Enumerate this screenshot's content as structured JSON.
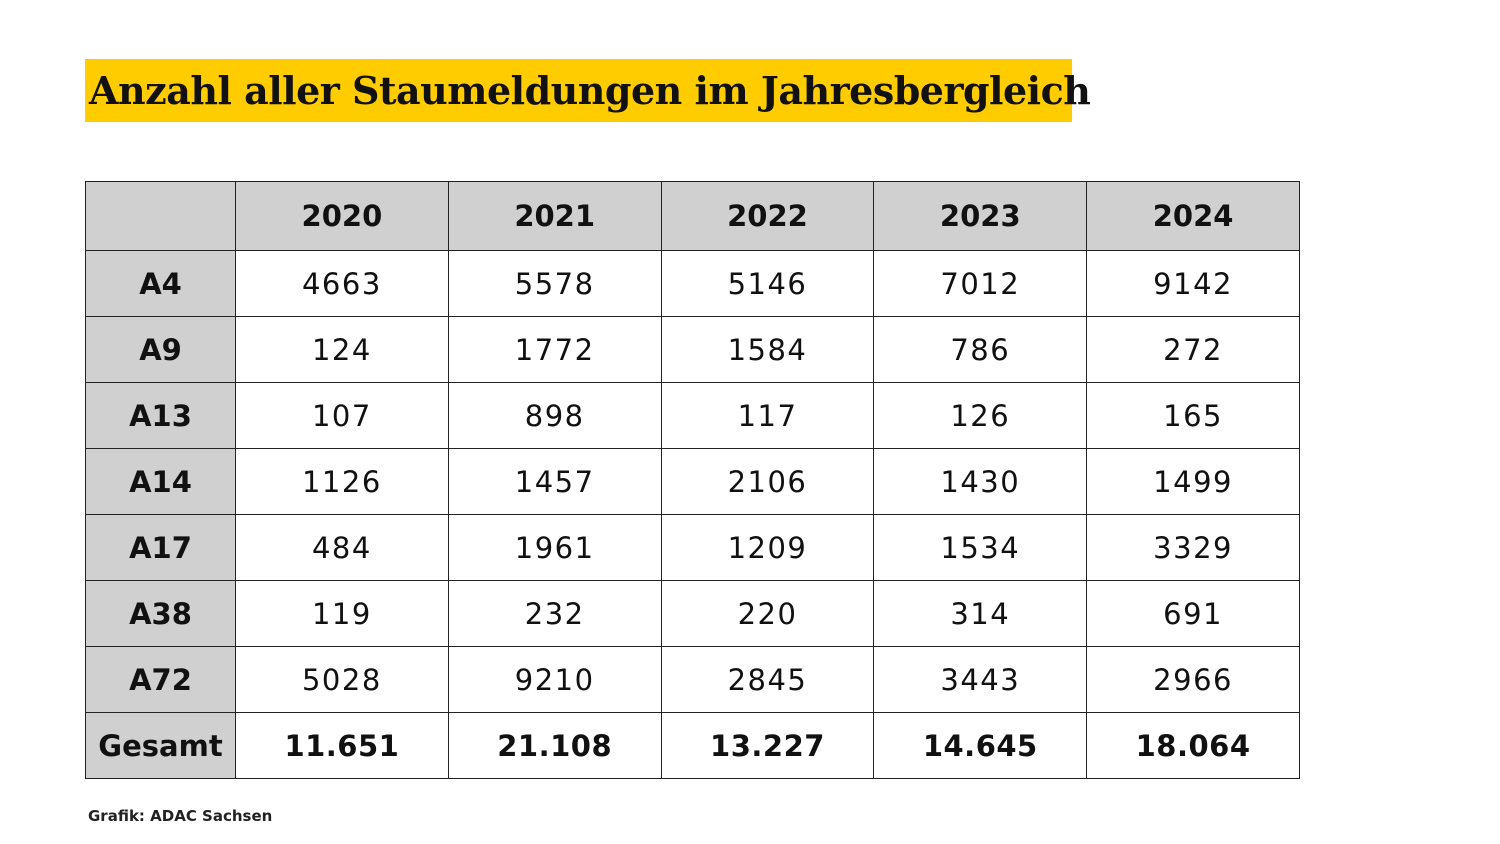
{
  "title": "Anzahl aller Staumeldungen im Jahresbergleich",
  "source": "Grafik: ADAC Sachsen",
  "colors": {
    "title_background": "#ffcc00",
    "header_background": "#d0d0d0"
  },
  "chart_data": {
    "type": "table",
    "title": "Anzahl aller Staumeldungen im Jahresbergleich",
    "corner_label": "",
    "columns": [
      "2020",
      "2021",
      "2022",
      "2023",
      "2024"
    ],
    "rows": [
      {
        "label": "A4",
        "values": [
          "4663",
          "5578",
          "5146",
          "7012",
          "9142"
        ]
      },
      {
        "label": "A9",
        "values": [
          "124",
          "1772",
          "1584",
          "786",
          "272"
        ]
      },
      {
        "label": "A13",
        "values": [
          "107",
          "898",
          "117",
          "126",
          "165"
        ]
      },
      {
        "label": "A14",
        "values": [
          "1126",
          "1457",
          "2106",
          "1430",
          "1499"
        ]
      },
      {
        "label": "A17",
        "values": [
          "484",
          "1961",
          "1209",
          "1534",
          "3329"
        ]
      },
      {
        "label": "A38",
        "values": [
          "119",
          "232",
          "220",
          "314",
          "691"
        ]
      },
      {
        "label": "A72",
        "values": [
          "5028",
          "9210",
          "2845",
          "3443",
          "2966"
        ]
      }
    ],
    "total": {
      "label": "Gesamt",
      "values": [
        "11.651",
        "21.108",
        "13.227",
        "14.645",
        "18.064"
      ]
    }
  }
}
